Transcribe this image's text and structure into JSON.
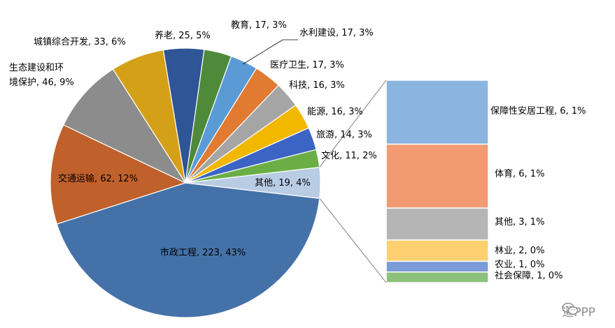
{
  "chart_data": {
    "type": "pie",
    "title": "",
    "main_pie": [
      {
        "name": "市政工程",
        "value": 223,
        "percent": "43%",
        "color": "#4472A8",
        "label": "市政工程, 223, 43%"
      },
      {
        "name": "交通运输",
        "value": 62,
        "percent": "12%",
        "color": "#C0602B",
        "label": "交通运输, 62, 12%"
      },
      {
        "name": "生态建设和环境保护",
        "value": 46,
        "percent": "9%",
        "color": "#8C8C8C",
        "label": "生态建设和环境保护, 46, 9%"
      },
      {
        "name": "城镇综合开发",
        "value": 33,
        "percent": "6%",
        "color": "#D4A017",
        "label": "城镇综合开发, 33, 6%"
      },
      {
        "name": "养老",
        "value": 25,
        "percent": "5%",
        "color": "#2F5597",
        "label": "养老, 25, 5%"
      },
      {
        "name": "教育",
        "value": 17,
        "percent": "3%",
        "color": "#4E8A3A",
        "label": "教育, 17, 3%"
      },
      {
        "name": "水利建设",
        "value": 17,
        "percent": "3%",
        "color": "#5B9BD5",
        "label": "水利建设, 17, 3%"
      },
      {
        "name": "医疗卫生",
        "value": 17,
        "percent": "3%",
        "color": "#E07B31",
        "label": "医疗卫生, 17, 3%"
      },
      {
        "name": "科技",
        "value": 16,
        "percent": "3%",
        "color": "#A5A5A5",
        "label": "科技, 16, 3%"
      },
      {
        "name": "能源",
        "value": 16,
        "percent": "3%",
        "color": "#F2B800",
        "label": "能源, 16, 3%"
      },
      {
        "name": "旅游",
        "value": 14,
        "percent": "3%",
        "color": "#3B64C4",
        "label": "旅游, 14, 3%"
      },
      {
        "name": "文化",
        "value": 11,
        "percent": "2%",
        "color": "#6AAE45",
        "label": "文化, 11, 2%"
      },
      {
        "name": "其他",
        "value": 19,
        "percent": "4%",
        "color": "#B8CCE4",
        "label": "其他, 19, 4%"
      }
    ],
    "breakdown_of": "其他",
    "breakdown_bar": [
      {
        "name": "保障性安居工程",
        "value": 6,
        "percent": "1%",
        "color": "#8CB4E0",
        "label": "保障性安居工程, 6, 1%"
      },
      {
        "name": "体育",
        "value": 6,
        "percent": "1%",
        "color": "#F29B72",
        "label": "体育, 6, 1%"
      },
      {
        "name": "其他",
        "value": 3,
        "percent": "1%",
        "color": "#B5B5B5",
        "label": "其他, 3, 1%"
      },
      {
        "name": "林业",
        "value": 2,
        "percent": "0%",
        "color": "#FFD070",
        "label": "林业, 2, 0%"
      },
      {
        "name": "农业",
        "value": 1,
        "percent": "0%",
        "color": "#7A9AD8",
        "label": "农业, 1, 0%"
      },
      {
        "name": "社会保障",
        "value": 1,
        "percent": "0%",
        "color": "#8DC07A",
        "label": "社会保障, 1, 0%"
      }
    ]
  },
  "watermark": {
    "text": "道PPP",
    "icon": "wechat-icon"
  }
}
